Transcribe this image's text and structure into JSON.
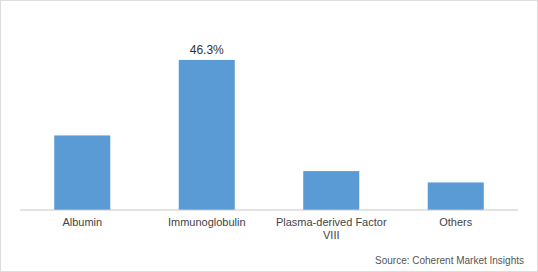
{
  "chart_data": {
    "type": "bar",
    "categories": [
      "Albumin",
      "Immunoglobulin",
      "Plasma-derived Factor\nVIII",
      "Others"
    ],
    "values": [
      23,
      46.3,
      12,
      8.5
    ],
    "color": "#5B9BD5",
    "ylim": [
      0,
      58
    ],
    "grid": false,
    "tick_labels": "x",
    "annotations": [
      {
        "text": "46.3%",
        "x": "Immunoglobulin",
        "y": 46.3
      }
    ],
    "source": "Source: Coherent Market Insights"
  }
}
